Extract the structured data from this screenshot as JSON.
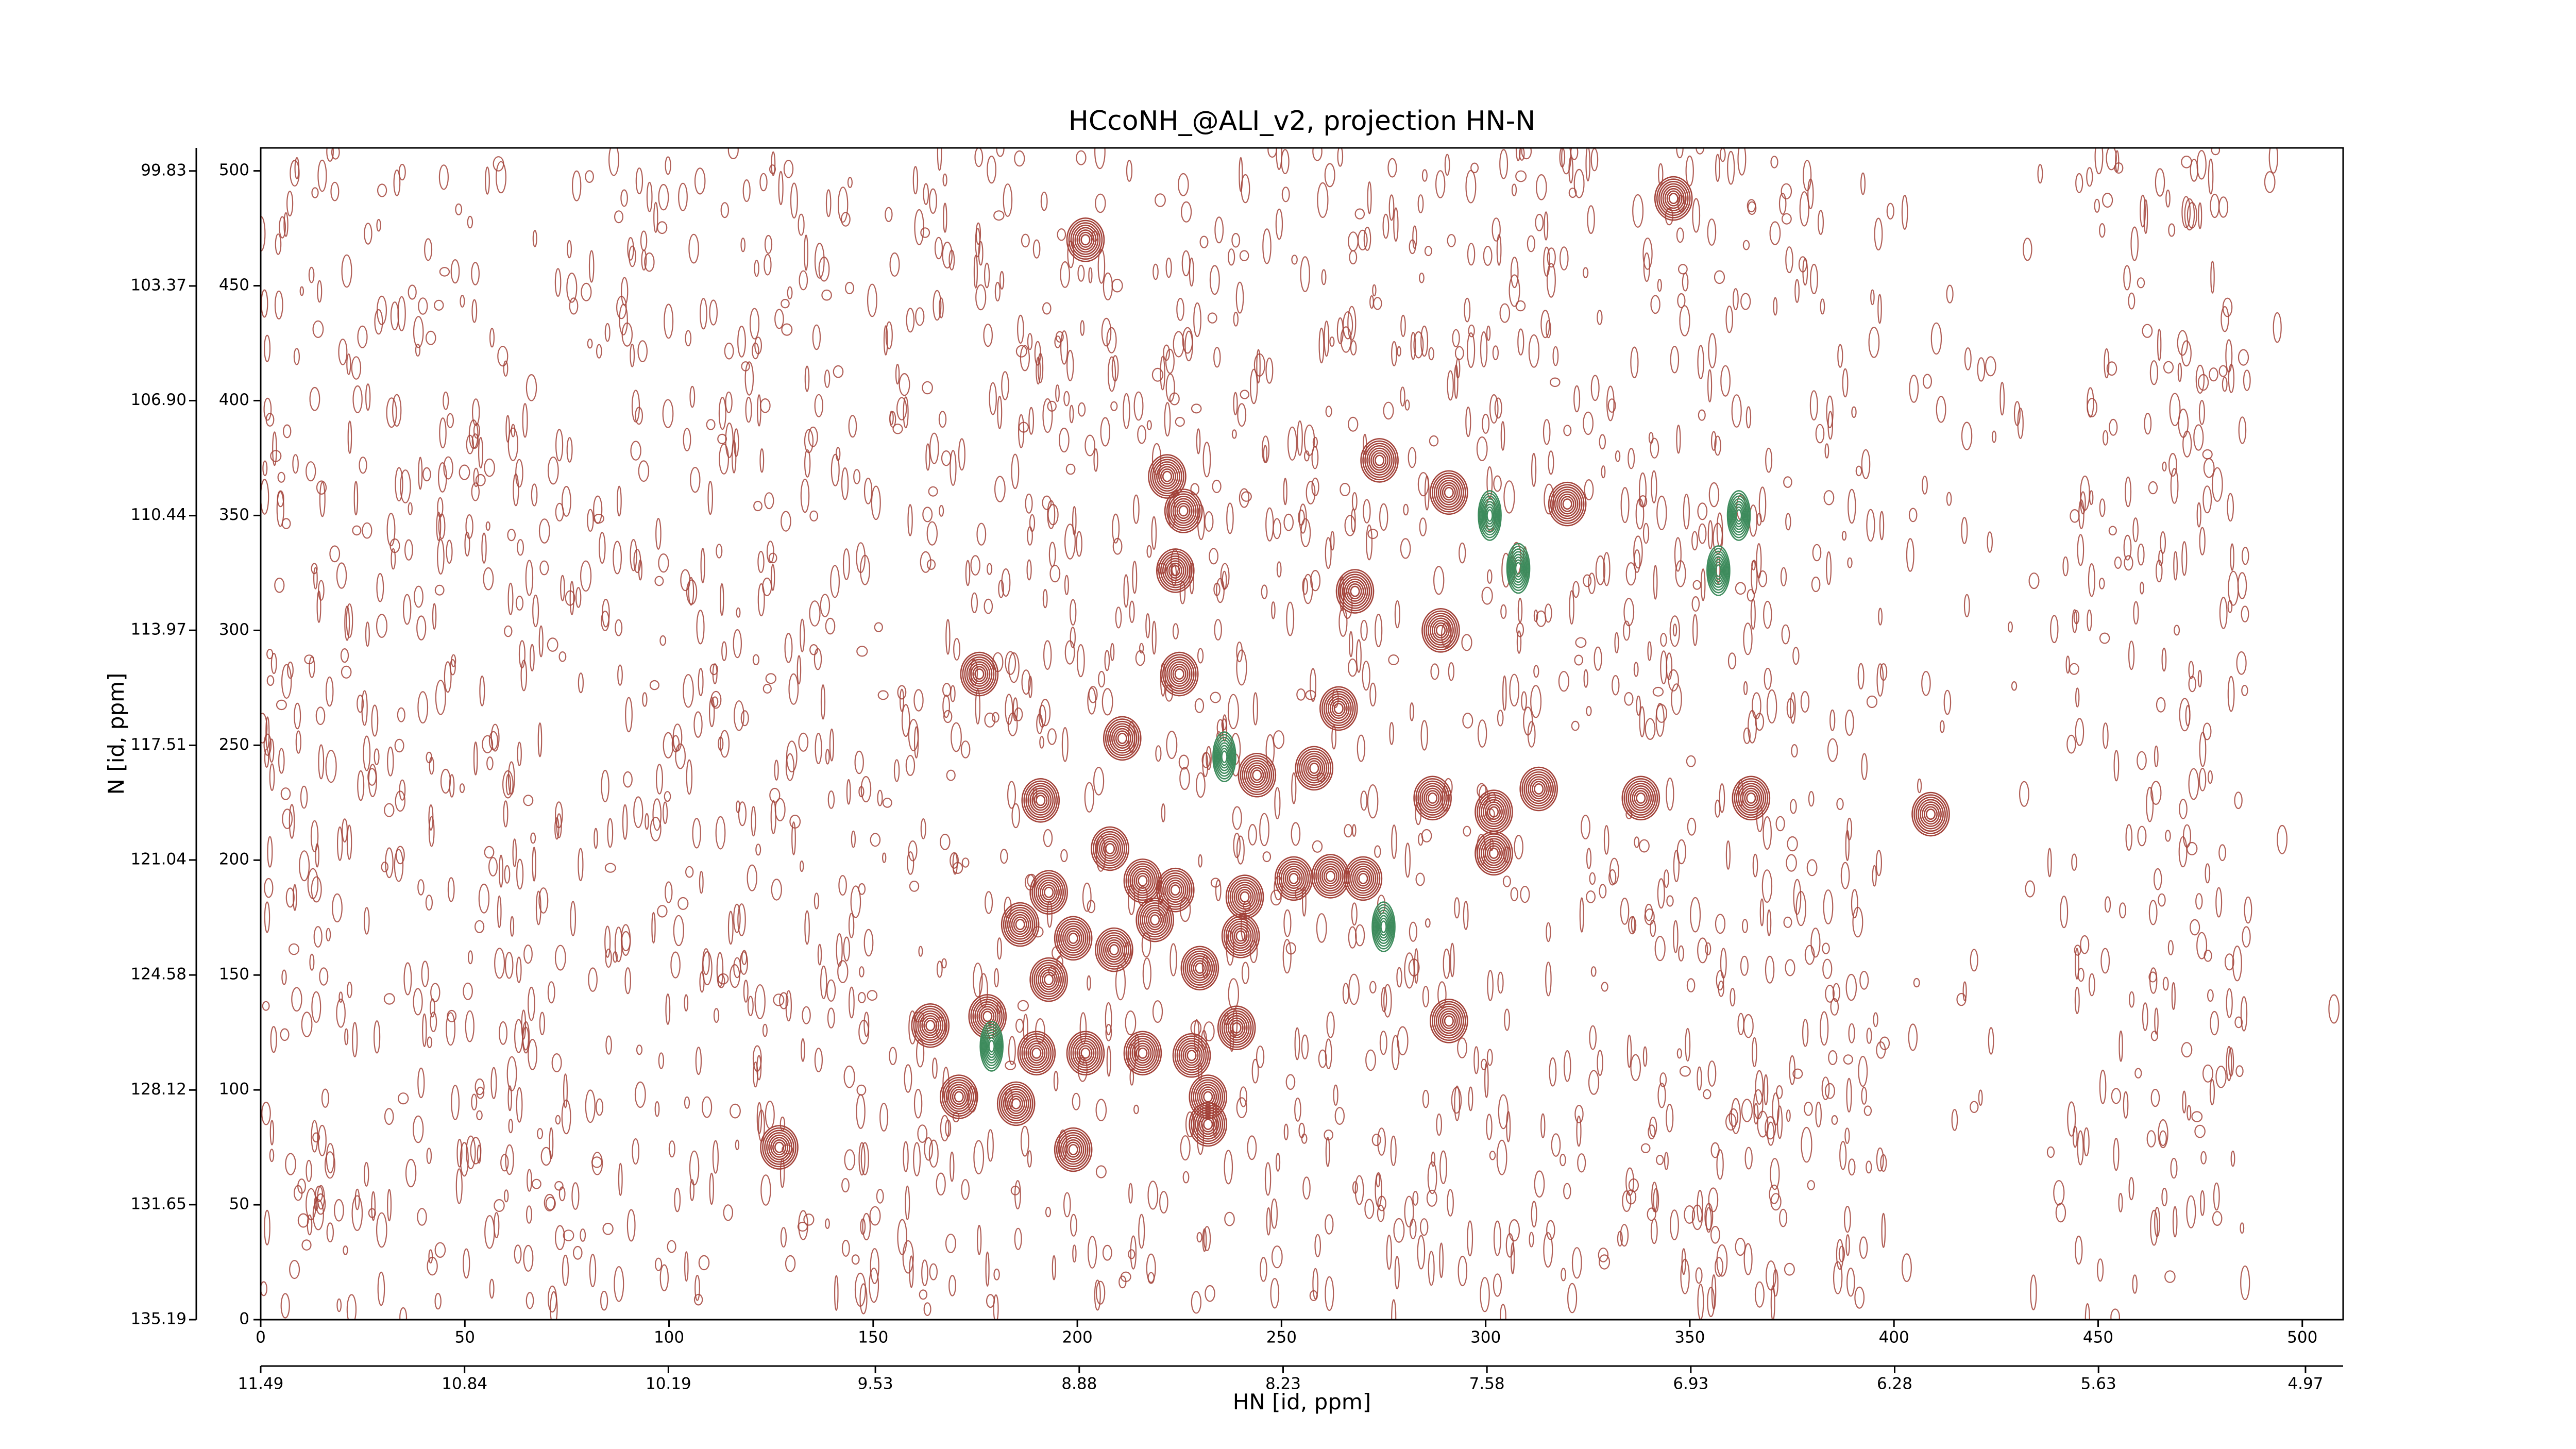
{
  "chart_data": {
    "type": "contour",
    "title": "HCcoNH_@ALI_v2, projection HN-N",
    "xlabel": "HN [id, ppm]",
    "ylabel": "N [id, ppm]",
    "xlim": [
      0,
      510
    ],
    "ylim": [
      0,
      510
    ],
    "xticks": [
      0,
      50,
      100,
      150,
      200,
      250,
      300,
      350,
      400,
      450,
      500
    ],
    "yticks": [
      0,
      50,
      100,
      150,
      200,
      250,
      300,
      350,
      400,
      450,
      500
    ],
    "x2lim": [
      11.49,
      4.85
    ],
    "x2ticks": [
      11.49,
      10.84,
      10.19,
      9.53,
      8.88,
      8.23,
      7.58,
      6.93,
      6.28,
      5.63,
      4.97
    ],
    "y2lim": [
      135.19,
      99.12
    ],
    "y2ticks": [
      135.19,
      131.65,
      128.12,
      124.58,
      121.04,
      117.51,
      113.97,
      110.44,
      {
        "value": 106.9,
        "label": "106.90"
      },
      103.37,
      99.83
    ],
    "series": [
      {
        "color": "#a3433a",
        "x": [
          202,
          346,
          222,
          226,
          224,
          274,
          291,
          320,
          268,
          289,
          176,
          225,
          264,
          211,
          244,
          258,
          191,
          287,
          302,
          313,
          338,
          365,
          409,
          302,
          208,
          262,
          270,
          253,
          241,
          216,
          193,
          224,
          186,
          199,
          209,
          219,
          240,
          230,
          193,
          291,
          164,
          178,
          190,
          202,
          216,
          228,
          239,
          171,
          185,
          232,
          232,
          199,
          127
        ],
        "values": [
          470,
          488,
          367,
          352,
          326,
          374,
          360,
          355,
          317,
          300,
          281,
          281,
          266,
          253,
          237,
          240,
          226,
          227,
          221,
          231,
          227,
          227,
          220,
          203,
          205,
          193,
          192,
          192,
          184,
          191,
          186,
          187,
          172,
          166,
          161,
          174,
          167,
          153,
          148,
          130,
          128,
          132,
          116,
          116,
          116,
          115,
          127,
          97,
          94,
          97,
          85,
          74,
          75
        ]
      },
      {
        "color": "#3d8b5c",
        "x": [
          236,
          275,
          179,
          308,
          357,
          362,
          301
        ],
        "values": [
          245,
          171,
          119,
          327,
          326,
          350,
          350
        ]
      }
    ]
  }
}
